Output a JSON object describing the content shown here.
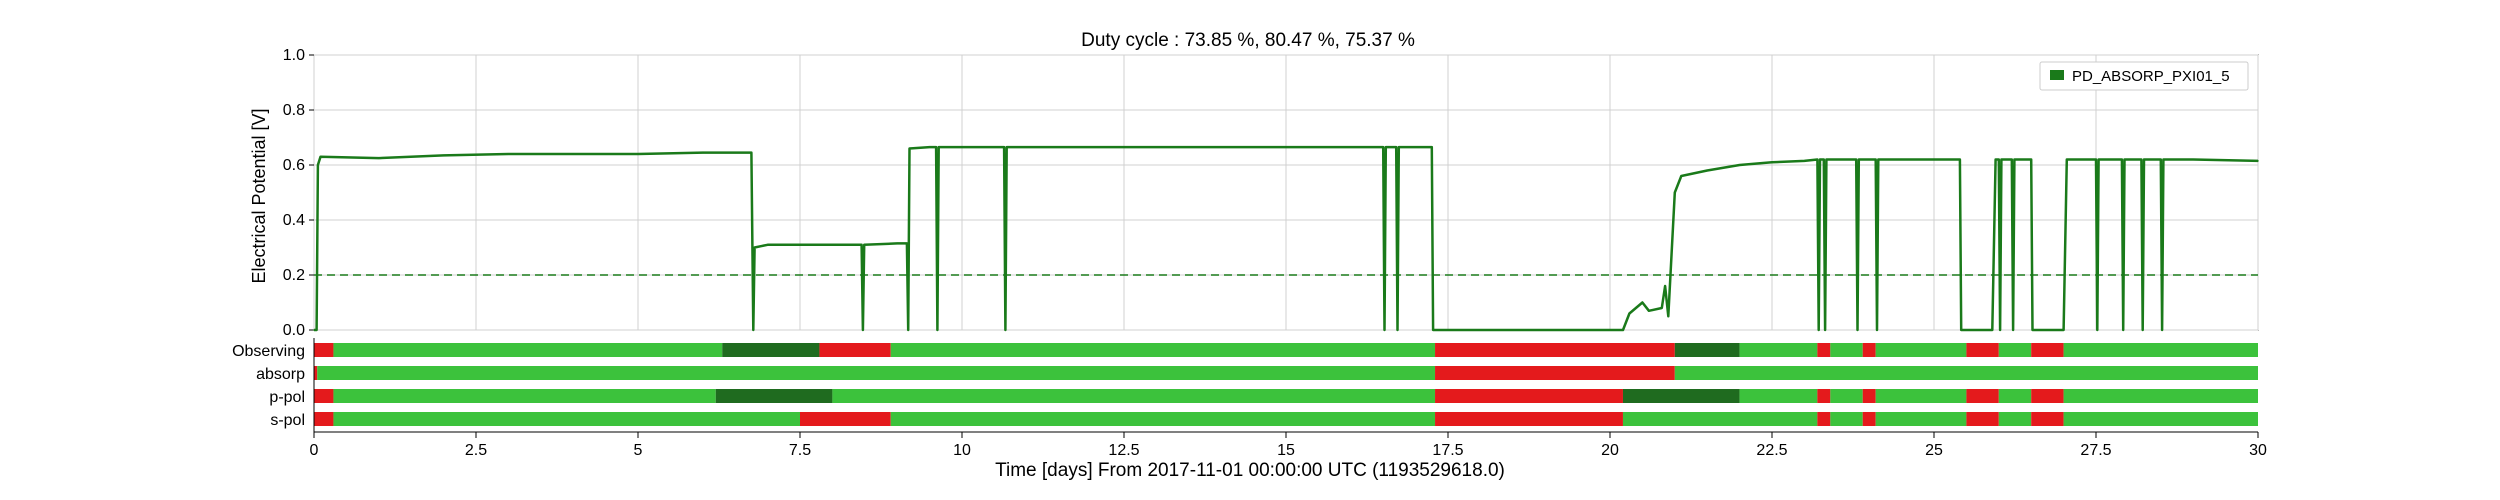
{
  "chart_data": {
    "type": "line",
    "title": "Duty cycle : 73.85 %, 80.47 %, 75.37 %",
    "xlabel": "Time [days] From 2017-11-01 00:00:00 UTC (1193529618.0)",
    "ylabel": "Electrical Potential [V]",
    "xlim": [
      0,
      30
    ],
    "ylim": [
      0,
      1.0
    ],
    "xticks": [
      "0",
      "2.5",
      "5",
      "7.5",
      "10",
      "12.5",
      "15",
      "17.5",
      "20",
      "22.5",
      "25",
      "27.5",
      "30"
    ],
    "xtick_values": [
      0,
      2.5,
      5,
      7.5,
      10,
      12.5,
      15,
      17.5,
      20,
      22.5,
      25,
      27.5,
      30
    ],
    "yticks": [
      "0.0",
      "0.2",
      "0.4",
      "0.6",
      "0.8",
      "1.0"
    ],
    "ytick_values": [
      0,
      0.2,
      0.4,
      0.6,
      0.8,
      1.0
    ],
    "grid": true,
    "legend_position": "top-right",
    "threshold": 0.2,
    "series": [
      {
        "name": "PD_ABSORP_PXI01_5",
        "color": "#1a7a1a",
        "points": [
          [
            0,
            0.0
          ],
          [
            0.04,
            0.0
          ],
          [
            0.06,
            0.6
          ],
          [
            0.1,
            0.63
          ],
          [
            1,
            0.625
          ],
          [
            2,
            0.635
          ],
          [
            3,
            0.64
          ],
          [
            4,
            0.64
          ],
          [
            5,
            0.64
          ],
          [
            6,
            0.645
          ],
          [
            6.75,
            0.645
          ],
          [
            6.78,
            0.0
          ],
          [
            6.8,
            0.3
          ],
          [
            7,
            0.31
          ],
          [
            8,
            0.31
          ],
          [
            8.45,
            0.31
          ],
          [
            8.47,
            0.0
          ],
          [
            8.49,
            0.31
          ],
          [
            9,
            0.315
          ],
          [
            9.15,
            0.315
          ],
          [
            9.17,
            0.0
          ],
          [
            9.19,
            0.66
          ],
          [
            9.5,
            0.665
          ],
          [
            9.6,
            0.665
          ],
          [
            9.62,
            0.0
          ],
          [
            9.64,
            0.665
          ],
          [
            10.65,
            0.665
          ],
          [
            10.67,
            0.0
          ],
          [
            10.69,
            0.665
          ],
          [
            12.5,
            0.665
          ],
          [
            15,
            0.665
          ],
          [
            16.5,
            0.665
          ],
          [
            16.52,
            0.0
          ],
          [
            16.54,
            0.665
          ],
          [
            16.7,
            0.665
          ],
          [
            16.72,
            0.0
          ],
          [
            16.74,
            0.665
          ],
          [
            17.25,
            0.665
          ],
          [
            17.27,
            0.0
          ],
          [
            20.2,
            0.0
          ],
          [
            20.3,
            0.06
          ],
          [
            20.5,
            0.1
          ],
          [
            20.6,
            0.07
          ],
          [
            20.8,
            0.08
          ],
          [
            20.85,
            0.16
          ],
          [
            20.9,
            0.05
          ],
          [
            21.0,
            0.5
          ],
          [
            21.1,
            0.56
          ],
          [
            21.5,
            0.58
          ],
          [
            22,
            0.6
          ],
          [
            22.5,
            0.61
          ],
          [
            23.0,
            0.615
          ],
          [
            23.2,
            0.62
          ],
          [
            23.22,
            0.0
          ],
          [
            23.24,
            0.62
          ],
          [
            23.3,
            0.62
          ],
          [
            23.32,
            0.0
          ],
          [
            23.34,
            0.62
          ],
          [
            23.8,
            0.62
          ],
          [
            23.82,
            0.0
          ],
          [
            23.84,
            0.62
          ],
          [
            24.1,
            0.62
          ],
          [
            24.12,
            0.0
          ],
          [
            24.14,
            0.62
          ],
          [
            24.5,
            0.62
          ],
          [
            25.4,
            0.62
          ],
          [
            25.42,
            0.0
          ],
          [
            25.9,
            0.0
          ],
          [
            25.95,
            0.62
          ],
          [
            26.0,
            0.62
          ],
          [
            26.02,
            0.0
          ],
          [
            26.04,
            0.62
          ],
          [
            26.2,
            0.62
          ],
          [
            26.22,
            0.0
          ],
          [
            26.24,
            0.62
          ],
          [
            26.5,
            0.62
          ],
          [
            26.52,
            0.0
          ],
          [
            27.0,
            0.0
          ],
          [
            27.05,
            0.62
          ],
          [
            27.5,
            0.62
          ],
          [
            27.52,
            0.0
          ],
          [
            27.54,
            0.62
          ],
          [
            27.9,
            0.62
          ],
          [
            27.92,
            0.0
          ],
          [
            27.94,
            0.62
          ],
          [
            28.2,
            0.62
          ],
          [
            28.22,
            0.0
          ],
          [
            28.24,
            0.62
          ],
          [
            28.5,
            0.62
          ],
          [
            28.52,
            0.0
          ],
          [
            28.54,
            0.62
          ],
          [
            29,
            0.62
          ],
          [
            30,
            0.615
          ]
        ]
      }
    ],
    "state_bars": [
      {
        "label": "Observing",
        "segments": [
          [
            0,
            0.3,
            "off"
          ],
          [
            0.3,
            6.3,
            "on"
          ],
          [
            6.3,
            7.8,
            "dark"
          ],
          [
            7.8,
            8.9,
            "off"
          ],
          [
            8.9,
            17.3,
            "on"
          ],
          [
            17.3,
            21.0,
            "off"
          ],
          [
            21.0,
            22.0,
            "dark"
          ],
          [
            22.0,
            23.2,
            "on"
          ],
          [
            23.2,
            23.4,
            "off"
          ],
          [
            23.4,
            23.9,
            "on"
          ],
          [
            23.9,
            24.1,
            "off"
          ],
          [
            24.1,
            25.5,
            "on"
          ],
          [
            25.5,
            26.0,
            "off"
          ],
          [
            26.0,
            26.5,
            "on"
          ],
          [
            26.5,
            27.0,
            "off"
          ],
          [
            27.0,
            30,
            "on"
          ]
        ]
      },
      {
        "label": "absorp",
        "segments": [
          [
            0,
            0.05,
            "off"
          ],
          [
            0.05,
            17.3,
            "on"
          ],
          [
            17.3,
            21.0,
            "off"
          ],
          [
            21.0,
            30,
            "on"
          ]
        ]
      },
      {
        "label": "p-pol",
        "segments": [
          [
            0,
            0.3,
            "off"
          ],
          [
            0.3,
            6.2,
            "on"
          ],
          [
            6.2,
            8.0,
            "dark"
          ],
          [
            8.0,
            17.3,
            "on"
          ],
          [
            17.3,
            20.2,
            "off"
          ],
          [
            20.2,
            22.0,
            "dark"
          ],
          [
            22.0,
            23.2,
            "on"
          ],
          [
            23.2,
            23.4,
            "off"
          ],
          [
            23.4,
            23.9,
            "on"
          ],
          [
            23.9,
            24.1,
            "off"
          ],
          [
            24.1,
            25.5,
            "on"
          ],
          [
            25.5,
            26.0,
            "off"
          ],
          [
            26.0,
            26.5,
            "on"
          ],
          [
            26.5,
            27.0,
            "off"
          ],
          [
            27.0,
            30,
            "on"
          ]
        ]
      },
      {
        "label": "s-pol",
        "segments": [
          [
            0,
            0.3,
            "off"
          ],
          [
            0.3,
            7.5,
            "on"
          ],
          [
            7.5,
            8.9,
            "off"
          ],
          [
            8.9,
            17.3,
            "on"
          ],
          [
            17.3,
            20.2,
            "off"
          ],
          [
            20.2,
            23.2,
            "on"
          ],
          [
            23.2,
            23.4,
            "off"
          ],
          [
            23.4,
            23.9,
            "on"
          ],
          [
            23.9,
            24.1,
            "off"
          ],
          [
            24.1,
            25.5,
            "on"
          ],
          [
            25.5,
            26.0,
            "off"
          ],
          [
            26.0,
            26.5,
            "on"
          ],
          [
            26.5,
            27.0,
            "off"
          ],
          [
            27.0,
            30,
            "on"
          ]
        ]
      }
    ],
    "state_colors": {
      "on": "#3cc23c",
      "off": "#e41a1c",
      "dark": "#1f6b1f"
    }
  }
}
